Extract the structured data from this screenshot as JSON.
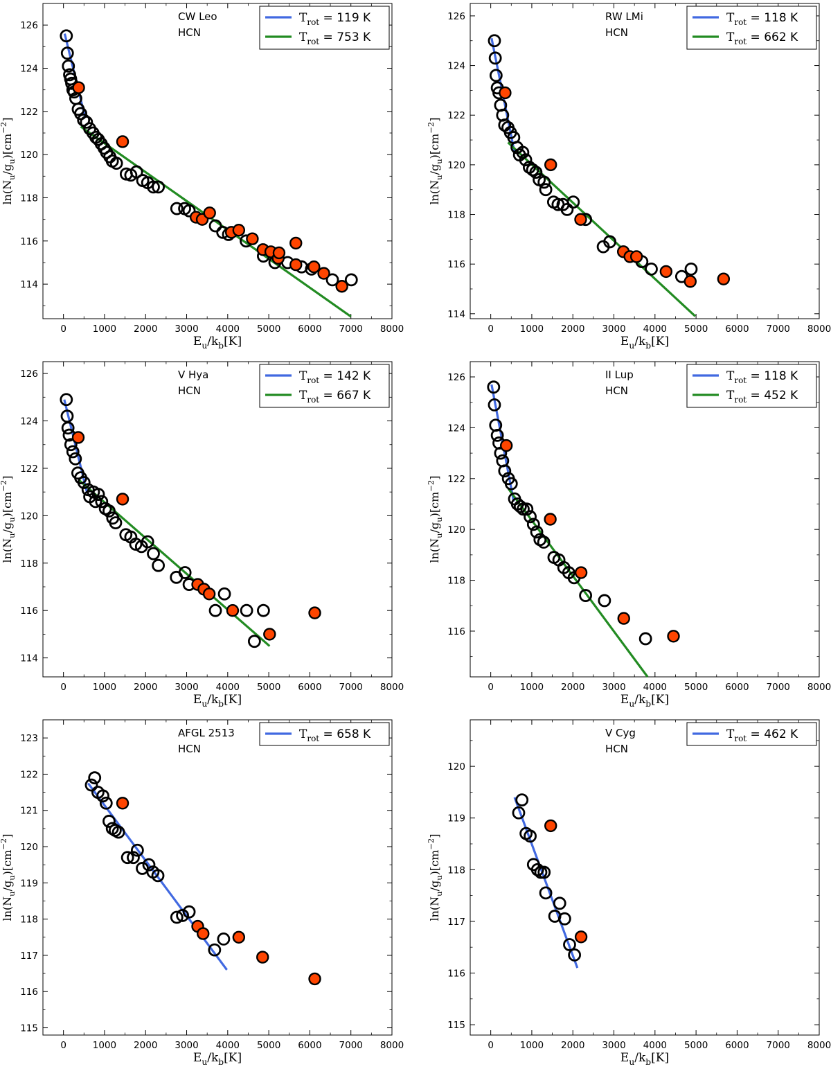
{
  "figure": {
    "xlabel": "E_u/k_b[K]",
    "ylabel": "ln(N_u/g_u)[cm^-2]",
    "open_marker_color": "#000000",
    "filled_marker_color": "#ff4500",
    "blue_line_color": "#4169e1",
    "green_line_color": "#228b22"
  },
  "chart_data": [
    {
      "type": "scatter",
      "source": "CW Leo",
      "species": "HCN",
      "xlim": [
        -500,
        8000
      ],
      "ylim": [
        112.4,
        127
      ],
      "xticks": [
        0,
        1000,
        2000,
        3000,
        4000,
        5000,
        6000,
        7000,
        8000
      ],
      "yticks": [
        114,
        116,
        118,
        120,
        122,
        124,
        126
      ],
      "legend_position": "top-right",
      "fits": [
        {
          "label": "T_rot = 119 K",
          "temp": "119 K",
          "color": "blue",
          "x": [
            30,
            530
          ],
          "y": [
            125.6,
            121.7
          ]
        },
        {
          "label": "T_rot = 753 K",
          "temp": "753 K",
          "color": "green",
          "x": [
            420,
            7000
          ],
          "y": [
            121.3,
            112.5
          ]
        }
      ],
      "open": [
        [
          70,
          125.5
        ],
        [
          95,
          124.7
        ],
        [
          120,
          124.1
        ],
        [
          150,
          123.7
        ],
        [
          175,
          123.5
        ],
        [
          200,
          123.3
        ],
        [
          230,
          123.0
        ],
        [
          260,
          122.9
        ],
        [
          300,
          122.6
        ],
        [
          360,
          122.1
        ],
        [
          420,
          121.9
        ],
        [
          490,
          121.6
        ],
        [
          560,
          121.5
        ],
        [
          640,
          121.2
        ],
        [
          720,
          121.0
        ],
        [
          790,
          120.8
        ],
        [
          850,
          120.7
        ],
        [
          920,
          120.5
        ],
        [
          990,
          120.3
        ],
        [
          1050,
          120.1
        ],
        [
          1130,
          119.9
        ],
        [
          1190,
          119.7
        ],
        [
          1290,
          119.6
        ],
        [
          1530,
          119.1
        ],
        [
          1640,
          119.05
        ],
        [
          1780,
          119.2
        ],
        [
          1930,
          118.8
        ],
        [
          2050,
          118.7
        ],
        [
          2190,
          118.5
        ],
        [
          2310,
          118.5
        ],
        [
          2760,
          117.5
        ],
        [
          2950,
          117.5
        ],
        [
          3060,
          117.4
        ],
        [
          3700,
          116.7
        ],
        [
          3880,
          116.4
        ],
        [
          4020,
          116.3
        ],
        [
          4450,
          116.0
        ],
        [
          4870,
          115.3
        ],
        [
          5150,
          115.0
        ],
        [
          5460,
          115.0
        ],
        [
          5800,
          114.8
        ],
        [
          6040,
          114.7
        ],
        [
          6550,
          114.2
        ],
        [
          7010,
          114.2
        ]
      ],
      "filled": [
        [
          370,
          123.1
        ],
        [
          1440,
          120.6
        ],
        [
          3230,
          117.1
        ],
        [
          3380,
          117.0
        ],
        [
          3560,
          117.3
        ],
        [
          4090,
          116.4
        ],
        [
          4270,
          116.5
        ],
        [
          4600,
          116.1
        ],
        [
          4860,
          115.6
        ],
        [
          5050,
          115.5
        ],
        [
          5230,
          115.2
        ],
        [
          5250,
          115.45
        ],
        [
          5660,
          115.9
        ],
        [
          5660,
          114.9
        ],
        [
          6100,
          114.8
        ],
        [
          6340,
          114.5
        ],
        [
          6780,
          113.9
        ]
      ]
    },
    {
      "type": "scatter",
      "source": "RW LMi",
      "species": "HCN",
      "xlim": [
        -500,
        8000
      ],
      "ylim": [
        113.8,
        126.5
      ],
      "xticks": [
        0,
        1000,
        2000,
        3000,
        4000,
        5000,
        6000,
        7000,
        8000
      ],
      "yticks": [
        114,
        116,
        118,
        120,
        122,
        124,
        126
      ],
      "legend_position": "top-right",
      "fits": [
        {
          "label": "T_rot = 118 K",
          "temp": "118 K",
          "color": "blue",
          "x": [
            20,
            580
          ],
          "y": [
            125.1,
            120.5
          ]
        },
        {
          "label": "T_rot = 662 K",
          "temp": "662 K",
          "color": "green",
          "x": [
            420,
            4980
          ],
          "y": [
            120.9,
            113.9
          ]
        }
      ],
      "open": [
        [
          90,
          125.0
        ],
        [
          110,
          124.3
        ],
        [
          130,
          123.6
        ],
        [
          160,
          123.1
        ],
        [
          200,
          122.9
        ],
        [
          240,
          122.4
        ],
        [
          290,
          122.0
        ],
        [
          340,
          121.6
        ],
        [
          420,
          121.5
        ],
        [
          480,
          121.3
        ],
        [
          560,
          121.1
        ],
        [
          640,
          120.7
        ],
        [
          700,
          120.4
        ],
        [
          780,
          120.5
        ],
        [
          850,
          120.2
        ],
        [
          940,
          119.9
        ],
        [
          1020,
          119.8
        ],
        [
          1100,
          119.7
        ],
        [
          1180,
          119.4
        ],
        [
          1300,
          119.3
        ],
        [
          1340,
          119.0
        ],
        [
          1530,
          118.5
        ],
        [
          1640,
          118.4
        ],
        [
          1760,
          118.4
        ],
        [
          1860,
          118.2
        ],
        [
          2010,
          118.5
        ],
        [
          2310,
          117.8
        ],
        [
          2740,
          116.7
        ],
        [
          2900,
          116.9
        ],
        [
          3680,
          116.1
        ],
        [
          3910,
          115.8
        ],
        [
          4650,
          115.5
        ],
        [
          4880,
          115.8
        ]
      ],
      "filled": [
        [
          350,
          122.9
        ],
        [
          1460,
          120.0
        ],
        [
          2190,
          117.8
        ],
        [
          3230,
          116.5
        ],
        [
          3390,
          116.3
        ],
        [
          3550,
          116.3
        ],
        [
          4270,
          115.7
        ],
        [
          4860,
          115.3
        ],
        [
          5670,
          115.4
        ]
      ]
    },
    {
      "type": "scatter",
      "source": "V Hya",
      "species": "HCN",
      "xlim": [
        -500,
        8000
      ],
      "ylim": [
        113.2,
        126.5
      ],
      "xticks": [
        0,
        1000,
        2000,
        3000,
        4000,
        5000,
        6000,
        7000,
        8000
      ],
      "yticks": [
        114,
        116,
        118,
        120,
        122,
        124,
        126
      ],
      "legend_position": "top-right",
      "fits": [
        {
          "label": "T_rot = 142 K",
          "temp": "142 K",
          "color": "blue",
          "x": [
            20,
            570
          ],
          "y": [
            124.9,
            121.0
          ]
        },
        {
          "label": "T_rot = 667 K",
          "temp": "667 K",
          "color": "green",
          "x": [
            380,
            5020
          ],
          "y": [
            121.5,
            114.5
          ]
        }
      ],
      "open": [
        [
          70,
          124.9
        ],
        [
          90,
          124.2
        ],
        [
          110,
          123.7
        ],
        [
          140,
          123.4
        ],
        [
          180,
          123.0
        ],
        [
          230,
          122.7
        ],
        [
          290,
          122.4
        ],
        [
          350,
          121.8
        ],
        [
          420,
          121.6
        ],
        [
          500,
          121.4
        ],
        [
          600,
          121.1
        ],
        [
          640,
          120.8
        ],
        [
          730,
          121.0
        ],
        [
          780,
          120.6
        ],
        [
          850,
          120.9
        ],
        [
          930,
          120.6
        ],
        [
          1020,
          120.3
        ],
        [
          1110,
          120.2
        ],
        [
          1200,
          119.9
        ],
        [
          1270,
          119.7
        ],
        [
          1520,
          119.2
        ],
        [
          1640,
          119.1
        ],
        [
          1760,
          118.8
        ],
        [
          1900,
          118.7
        ],
        [
          2050,
          118.9
        ],
        [
          2190,
          118.4
        ],
        [
          2310,
          117.9
        ],
        [
          2750,
          117.4
        ],
        [
          2960,
          117.6
        ],
        [
          3060,
          117.1
        ],
        [
          3700,
          116.0
        ],
        [
          3920,
          116.7
        ],
        [
          4460,
          116.0
        ],
        [
          4650,
          114.7
        ],
        [
          4870,
          116.0
        ]
      ],
      "filled": [
        [
          360,
          123.3
        ],
        [
          1440,
          120.7
        ],
        [
          3270,
          117.1
        ],
        [
          3420,
          116.9
        ],
        [
          3550,
          116.7
        ],
        [
          4120,
          116.0
        ],
        [
          5020,
          115.0
        ],
        [
          6120,
          115.9
        ]
      ]
    },
    {
      "type": "scatter",
      "source": "II Lup",
      "species": "HCN",
      "xlim": [
        -500,
        8000
      ],
      "ylim": [
        114.2,
        126.6
      ],
      "xticks": [
        0,
        1000,
        2000,
        3000,
        4000,
        5000,
        6000,
        7000,
        8000
      ],
      "yticks": [
        116,
        118,
        120,
        122,
        124,
        126
      ],
      "legend_position": "top-right",
      "fits": [
        {
          "label": "T_rot = 118 K",
          "temp": "118 K",
          "color": "blue",
          "x": [
            20,
            560
          ],
          "y": [
            125.7,
            121.1
          ]
        },
        {
          "label": "T_rot = 452 K",
          "temp": "452 K",
          "color": "green",
          "x": [
            430,
            3820
          ],
          "y": [
            121.6,
            114.2
          ]
        }
      ],
      "open": [
        [
          70,
          125.6
        ],
        [
          90,
          124.9
        ],
        [
          120,
          124.1
        ],
        [
          160,
          123.7
        ],
        [
          200,
          123.4
        ],
        [
          240,
          123.0
        ],
        [
          290,
          122.7
        ],
        [
          340,
          122.3
        ],
        [
          430,
          122.0
        ],
        [
          500,
          121.8
        ],
        [
          580,
          121.2
        ],
        [
          650,
          121.0
        ],
        [
          720,
          120.9
        ],
        [
          790,
          120.8
        ],
        [
          880,
          120.8
        ],
        [
          960,
          120.5
        ],
        [
          1040,
          120.2
        ],
        [
          1120,
          119.9
        ],
        [
          1200,
          119.6
        ],
        [
          1290,
          119.5
        ],
        [
          1540,
          118.9
        ],
        [
          1660,
          118.8
        ],
        [
          1780,
          118.5
        ],
        [
          1900,
          118.3
        ],
        [
          2030,
          118.1
        ],
        [
          2310,
          117.4
        ],
        [
          2770,
          117.2
        ],
        [
          3770,
          115.7
        ]
      ],
      "filled": [
        [
          380,
          123.3
        ],
        [
          1450,
          120.4
        ],
        [
          2200,
          118.3
        ],
        [
          3240,
          116.5
        ],
        [
          4450,
          115.8
        ]
      ]
    },
    {
      "type": "scatter",
      "source": "AFGL 2513",
      "species": "HCN",
      "xlim": [
        -500,
        8000
      ],
      "ylim": [
        114.8,
        123.5
      ],
      "xticks": [
        0,
        1000,
        2000,
        3000,
        4000,
        5000,
        6000,
        7000,
        8000
      ],
      "yticks": [
        115,
        116,
        117,
        118,
        119,
        120,
        121,
        122,
        123
      ],
      "legend_position": "top-right",
      "fits": [
        {
          "label": "T_rot = 658 K",
          "temp": "658 K",
          "color": "blue",
          "x": [
            600,
            3980
          ],
          "y": [
            121.75,
            116.6
          ]
        }
      ],
      "open": [
        [
          680,
          121.7
        ],
        [
          760,
          121.9
        ],
        [
          840,
          121.5
        ],
        [
          960,
          121.4
        ],
        [
          1040,
          121.2
        ],
        [
          1110,
          120.7
        ],
        [
          1190,
          120.5
        ],
        [
          1260,
          120.45
        ],
        [
          1340,
          120.4
        ],
        [
          1560,
          119.7
        ],
        [
          1700,
          119.7
        ],
        [
          1800,
          119.9
        ],
        [
          1920,
          119.4
        ],
        [
          2080,
          119.5
        ],
        [
          2180,
          119.3
        ],
        [
          2300,
          119.2
        ],
        [
          2760,
          118.05
        ],
        [
          2900,
          118.1
        ],
        [
          3060,
          118.2
        ],
        [
          3680,
          117.15
        ],
        [
          3900,
          117.45
        ]
      ],
      "filled": [
        [
          1440,
          121.2
        ],
        [
          3270,
          117.8
        ],
        [
          3400,
          117.6
        ],
        [
          4270,
          117.5
        ],
        [
          4850,
          116.95
        ],
        [
          6120,
          116.35
        ]
      ]
    },
    {
      "type": "scatter",
      "source": "V Cyg",
      "species": "HCN",
      "xlim": [
        -500,
        8000
      ],
      "ylim": [
        114.8,
        120.9
      ],
      "xticks": [
        0,
        1000,
        2000,
        3000,
        4000,
        5000,
        6000,
        7000,
        8000
      ],
      "yticks": [
        115,
        116,
        117,
        118,
        119,
        120
      ],
      "legend_position": "top-right",
      "fits": [
        {
          "label": "T_rot = 462 K",
          "temp": "462 K",
          "color": "blue",
          "x": [
            580,
            2110
          ],
          "y": [
            119.4,
            116.1
          ]
        }
      ],
      "open": [
        [
          680,
          119.1
        ],
        [
          760,
          119.35
        ],
        [
          860,
          118.7
        ],
        [
          960,
          118.65
        ],
        [
          1040,
          118.1
        ],
        [
          1140,
          118.0
        ],
        [
          1220,
          117.95
        ],
        [
          1300,
          117.95
        ],
        [
          1340,
          117.55
        ],
        [
          1560,
          117.1
        ],
        [
          1680,
          117.35
        ],
        [
          1800,
          117.05
        ],
        [
          1920,
          116.55
        ],
        [
          2040,
          116.35
        ]
      ],
      "filled": [
        [
          1460,
          118.85
        ],
        [
          2200,
          116.7
        ]
      ]
    }
  ]
}
